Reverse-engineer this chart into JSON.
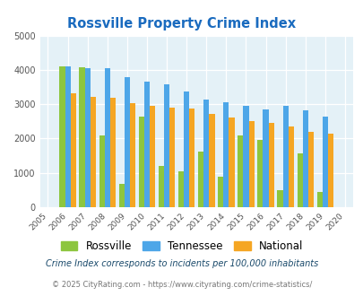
{
  "title": "Rossville Property Crime Index",
  "years": [
    2005,
    2006,
    2007,
    2008,
    2009,
    2010,
    2011,
    2012,
    2013,
    2014,
    2015,
    2016,
    2017,
    2018,
    2019,
    2020
  ],
  "rossville": [
    null,
    4110,
    4080,
    2100,
    680,
    2650,
    1200,
    1050,
    1620,
    880,
    2100,
    1950,
    500,
    1580,
    450,
    null
  ],
  "tennessee": [
    null,
    4100,
    4060,
    4050,
    3780,
    3660,
    3590,
    3360,
    3140,
    3060,
    2950,
    2860,
    2940,
    2830,
    2640,
    null
  ],
  "national": [
    null,
    3330,
    3220,
    3200,
    3040,
    2940,
    2910,
    2870,
    2720,
    2600,
    2500,
    2460,
    2360,
    2200,
    2130,
    null
  ],
  "bar_width": 0.28,
  "ylim": [
    0,
    5000
  ],
  "yticks": [
    0,
    1000,
    2000,
    3000,
    4000,
    5000
  ],
  "color_rossville": "#8dc63f",
  "color_tennessee": "#4da6e8",
  "color_national": "#f5a623",
  "plot_bg": "#e4f1f7",
  "title_color": "#1a6bbf",
  "legend_labels": [
    "Rossville",
    "Tennessee",
    "National"
  ],
  "footnote1": "Crime Index corresponds to incidents per 100,000 inhabitants",
  "footnote2": "© 2025 CityRating.com - https://www.cityrating.com/crime-statistics/",
  "footnote1_color": "#1a4a6b",
  "footnote2_color": "#777777"
}
